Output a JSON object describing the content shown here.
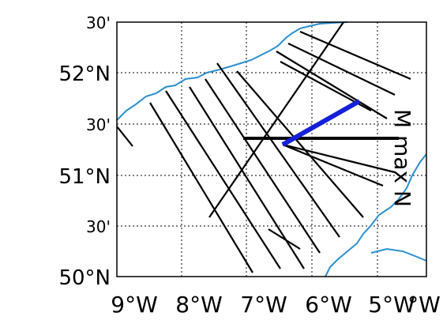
{
  "y_labels": [
    "30'",
    "52°N",
    "30'",
    "51°N",
    "30'",
    "50°N"
  ],
  "x_labels": [
    "9°W",
    "8°W",
    "7°W",
    "6°W",
    "5°W",
    "°W"
  ],
  "annotation": "M max N"
}
